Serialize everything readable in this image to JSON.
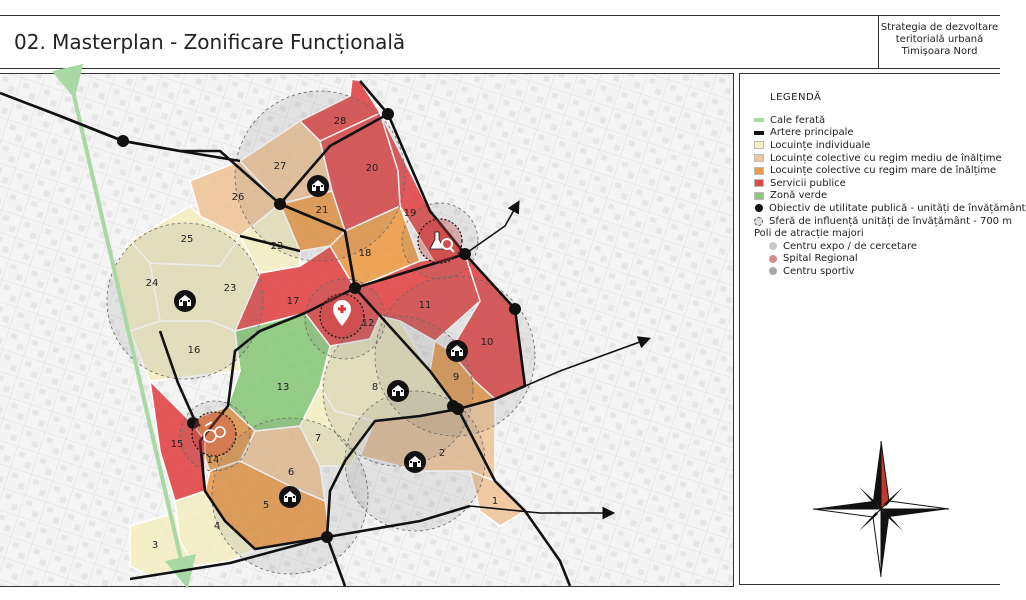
{
  "header": {
    "title": "02. Masterplan - Zonificare Funcțională",
    "subtitle_lines": [
      "Strategia de dezvoltare",
      "teritorială urbană",
      "Timișoara Nord"
    ]
  },
  "legend": {
    "title": "LEGENDĂ",
    "items": [
      {
        "label": "Cale ferată",
        "kind": "line",
        "color": "#a8d8a4"
      },
      {
        "label": "Artere principale",
        "kind": "line",
        "color": "#111111"
      },
      {
        "label": "Locuințe individuale",
        "kind": "swatch",
        "color": "#f3eec4"
      },
      {
        "label": "Locuințe colective cu regim mediu de înălțime",
        "kind": "swatch",
        "color": "#efc59a"
      },
      {
        "label": "Locuințe colective cu regim mare de înălțime",
        "kind": "swatch",
        "color": "#ec9b4a"
      },
      {
        "label": "Servicii publice",
        "kind": "swatch",
        "color": "#e1494a"
      },
      {
        "label": "Zonă verde",
        "kind": "swatch",
        "color": "#8cc87c"
      },
      {
        "label": "Obiectiv de utilitate publică - unități de învățământ",
        "kind": "dot",
        "color": "#111111"
      },
      {
        "label": "Sferă de influență unități de învățământ - 700 m",
        "kind": "dash",
        "color": "#dddddd"
      },
      {
        "label": "Poli de atracție majori",
        "kind": "text",
        "color": ""
      },
      {
        "label": "Centru expo / de cercetare",
        "kind": "subdot",
        "color": "#c9c9c9"
      },
      {
        "label": "Spital Regional",
        "kind": "subdot",
        "color": "#d98c8c"
      },
      {
        "label": "Centru sportiv",
        "kind": "subdot",
        "color": "#a9a9a9"
      }
    ]
  },
  "colors": {
    "individual": "#f3eec4",
    "medium": "#efc59a",
    "high": "#ec9b4a",
    "services": "#e1494a",
    "green": "#8cc87c",
    "railway": "#a8d8a4",
    "artery": "#111111"
  },
  "zones": [
    {
      "id": "1",
      "label": "1",
      "type": "medium"
    },
    {
      "id": "2",
      "label": "2",
      "type": "medium"
    },
    {
      "id": "3",
      "label": "3",
      "type": "individual"
    },
    {
      "id": "4",
      "label": "4",
      "type": "individual"
    },
    {
      "id": "5",
      "label": "5",
      "type": "high"
    },
    {
      "id": "6",
      "label": "6",
      "type": "medium"
    },
    {
      "id": "7",
      "label": "7",
      "type": "individual"
    },
    {
      "id": "8",
      "label": "8",
      "type": "individual"
    },
    {
      "id": "9",
      "label": "9",
      "type": "high"
    },
    {
      "id": "10",
      "label": "10",
      "type": "services"
    },
    {
      "id": "11",
      "label": "11",
      "type": "services"
    },
    {
      "id": "12",
      "label": "12",
      "type": "services"
    },
    {
      "id": "13",
      "label": "13",
      "type": "green"
    },
    {
      "id": "14",
      "label": "14",
      "type": "high"
    },
    {
      "id": "15",
      "label": "15",
      "type": "services"
    },
    {
      "id": "16",
      "label": "16",
      "type": "individual"
    },
    {
      "id": "17",
      "label": "17",
      "type": "services"
    },
    {
      "id": "18",
      "label": "18",
      "type": "high"
    },
    {
      "id": "19",
      "label": "19",
      "type": "services"
    },
    {
      "id": "20",
      "label": "20",
      "type": "services"
    },
    {
      "id": "21",
      "label": "21",
      "type": "high"
    },
    {
      "id": "22",
      "label": "22",
      "type": "individual"
    },
    {
      "id": "23",
      "label": "23",
      "type": "individual"
    },
    {
      "id": "24",
      "label": "24",
      "type": "individual"
    },
    {
      "id": "25",
      "label": "25",
      "type": "individual"
    },
    {
      "id": "26",
      "label": "26",
      "type": "medium"
    },
    {
      "id": "27",
      "label": "27",
      "type": "medium"
    },
    {
      "id": "28",
      "label": "28",
      "type": "services"
    }
  ],
  "poles": [
    {
      "name": "Centru expo / de cercetare",
      "icon": "flask-icon"
    },
    {
      "name": "Spital Regional",
      "icon": "hospital-pin-icon"
    },
    {
      "name": "Centru sportiv",
      "icon": "sport-icon"
    }
  ],
  "school_icon": "school-icon"
}
